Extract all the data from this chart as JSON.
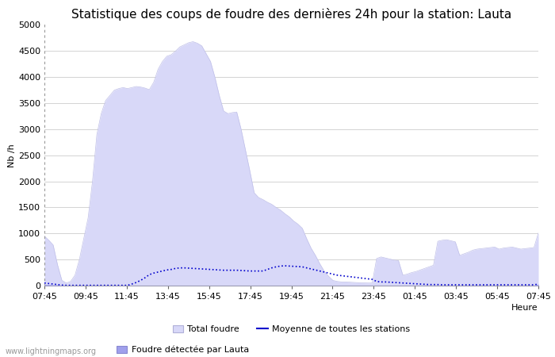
{
  "title": "Statistique des coups de foudre des dernières 24h pour la station: Lauta",
  "xlabel": "Heure",
  "ylabel": "Nb /h",
  "x_labels": [
    "07:45",
    "09:45",
    "11:45",
    "13:45",
    "15:45",
    "17:45",
    "19:45",
    "21:45",
    "23:45",
    "01:45",
    "03:45",
    "05:45",
    "07:45"
  ],
  "ylim": [
    0,
    5000
  ],
  "yticks": [
    0,
    500,
    1000,
    1500,
    2000,
    2500,
    3000,
    3500,
    4000,
    4500,
    5000
  ],
  "background_color": "#ffffff",
  "watermark": "www.lightningmaps.org",
  "total_foudre_color": "#d8d8f8",
  "lauta_color": "#a0a0ec",
  "moyenne_color": "#0000cc",
  "grid_color": "#cccccc",
  "total_foudre": [
    950,
    870,
    780,
    400,
    100,
    50,
    80,
    200,
    500,
    900,
    1300,
    2000,
    2900,
    3300,
    3550,
    3650,
    3750,
    3780,
    3800,
    3780,
    3800,
    3820,
    3810,
    3790,
    3760,
    3900,
    4150,
    4300,
    4400,
    4430,
    4500,
    4580,
    4620,
    4660,
    4680,
    4650,
    4600,
    4450,
    4300,
    4000,
    3650,
    3350,
    3300,
    3320,
    3330,
    3000,
    2600,
    2200,
    1780,
    1690,
    1650,
    1600,
    1560,
    1500,
    1450,
    1380,
    1320,
    1240,
    1180,
    1100,
    900,
    720,
    580,
    420,
    280,
    180,
    100,
    80,
    70,
    70,
    65,
    60,
    55,
    52,
    50,
    50,
    520,
    550,
    530,
    510,
    490,
    480,
    200,
    220,
    250,
    270,
    300,
    330,
    360,
    390,
    850,
    870,
    880,
    860,
    840,
    580,
    610,
    640,
    680,
    700,
    710,
    720,
    730,
    740,
    700,
    720,
    730,
    740,
    720,
    700,
    710,
    720,
    730,
    1010
  ],
  "lauta_foudre": [
    20,
    18,
    15,
    12,
    8,
    5,
    5,
    5,
    5,
    5,
    5,
    5,
    5,
    5,
    5,
    5,
    5,
    5,
    5,
    5,
    5,
    5,
    5,
    5,
    5,
    5,
    5,
    5,
    5,
    5,
    5,
    5,
    5,
    5,
    5,
    5,
    5,
    5,
    5,
    5,
    5,
    5,
    5,
    5,
    5,
    5,
    5,
    5,
    5,
    5,
    5,
    5,
    5,
    5,
    5,
    5,
    5,
    5,
    5,
    5,
    5,
    5,
    5,
    5,
    5,
    5,
    5,
    5,
    5,
    5,
    5,
    5,
    5,
    5,
    5,
    5,
    5,
    5,
    5,
    5,
    5,
    5,
    5,
    5,
    5,
    5,
    5,
    5,
    5,
    5,
    5,
    5,
    5,
    5,
    5,
    5,
    5,
    5,
    5,
    5,
    5,
    5,
    5,
    5,
    5,
    5,
    5,
    5,
    5,
    5,
    5,
    5,
    5,
    30
  ],
  "moyenne": [
    50,
    40,
    30,
    20,
    10,
    5,
    5,
    5,
    5,
    5,
    5,
    5,
    5,
    5,
    5,
    5,
    5,
    5,
    5,
    5,
    30,
    60,
    100,
    150,
    210,
    240,
    260,
    280,
    300,
    310,
    330,
    340,
    340,
    335,
    330,
    325,
    320,
    315,
    310,
    305,
    300,
    295,
    295,
    295,
    295,
    290,
    285,
    280,
    280,
    280,
    280,
    310,
    340,
    360,
    375,
    380,
    375,
    370,
    365,
    360,
    340,
    320,
    300,
    280,
    260,
    240,
    220,
    200,
    190,
    180,
    170,
    160,
    150,
    140,
    130,
    120,
    80,
    70,
    70,
    65,
    60,
    55,
    50,
    45,
    40,
    35,
    30,
    25,
    20,
    20,
    20,
    15,
    15,
    15,
    15,
    15,
    15,
    15,
    15,
    15,
    15,
    15,
    15,
    15,
    15,
    15,
    15,
    15,
    15,
    15,
    15,
    15,
    15,
    30
  ],
  "title_fontsize": 11,
  "label_fontsize": 8,
  "tick_fontsize": 8
}
